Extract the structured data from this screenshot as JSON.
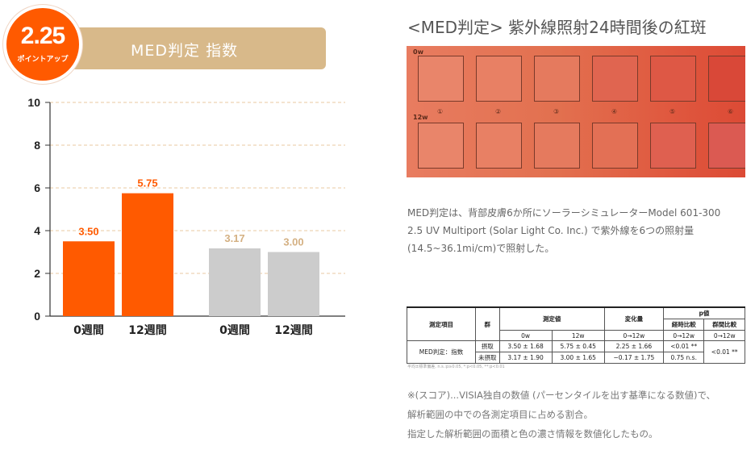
{
  "badge": {
    "value": "2.25",
    "label": "ポイントアップ"
  },
  "header": {
    "title": "MED判定 指数"
  },
  "chart_data": {
    "type": "bar",
    "categories": [
      "0週間",
      "12週間",
      "0週間",
      "12週間"
    ],
    "values": [
      3.5,
      5.75,
      3.17,
      3.0
    ],
    "value_labels": [
      "3.50",
      "5.75",
      "3.17",
      "3.00"
    ],
    "y_ticks": [
      "0",
      "2",
      "4",
      "6",
      "8",
      "10"
    ],
    "ylim": [
      0,
      10
    ],
    "grid": true,
    "colors": [
      "#ff5a00",
      "#ff5a00",
      "#cccccc",
      "#cccccc"
    ],
    "label_colors": [
      "#ff5a00",
      "#ff5a00",
      "#d4b082",
      "#d4b082"
    ]
  },
  "right": {
    "title": "<MED判定>  紫外線照射24時間後の紅斑",
    "photo": {
      "row1_label": "0w",
      "row2_label": "12w",
      "markers": [
        "①",
        "②",
        "③",
        "④",
        "⑤",
        "⑥"
      ]
    },
    "description": [
      "MED判定は、背部皮膚6か所にソーラーシミュレーターModel 601-300",
      "2.5 UV Multiport (Solar Light Co. Inc.) で紫外線を6つの照射量",
      "(14.5~36.1mi/cm)で照射した。"
    ],
    "table": {
      "h_item": "測定項目",
      "h_group": "群",
      "h_measure": "測定値",
      "h_change": "変化量",
      "h_p": "p値",
      "h_p_time": "経時比較",
      "h_p_group": "群間比較",
      "h_0w": "0w",
      "h_12w": "12w",
      "h_0_12w": "0→12w",
      "h_p_time_sub": "0→12w",
      "h_p_group_sub": "0→12w",
      "row_item": "MED判定：指数",
      "rows": [
        {
          "group": "摂取",
          "w0": "3.50  ±  1.68",
          "w12": "5.75  ±  0.45",
          "change": "2.25  ±  1.66",
          "p_time": "<0.01 **"
        },
        {
          "group": "未摂取",
          "w0": "3.17  ±  1.90",
          "w12": "3.00  ±  1.65",
          "change": "−0.17  ±  1.75",
          "p_time": "0.75  n.s."
        }
      ],
      "p_group": "<0.01 **"
    },
    "footnote": "平均±標準偏差, n.s.:p≥0.05, *:p<0.05, **:p<0.01",
    "notes": [
      "※(スコア)...VISIA独自の数値 (パーセンタイルを出す基準になる数値)で、",
      "解析範囲の中での各測定項目に占める割合。",
      "指定した解析範囲の面積と色の濃さ情報を数値化したもの。"
    ]
  }
}
